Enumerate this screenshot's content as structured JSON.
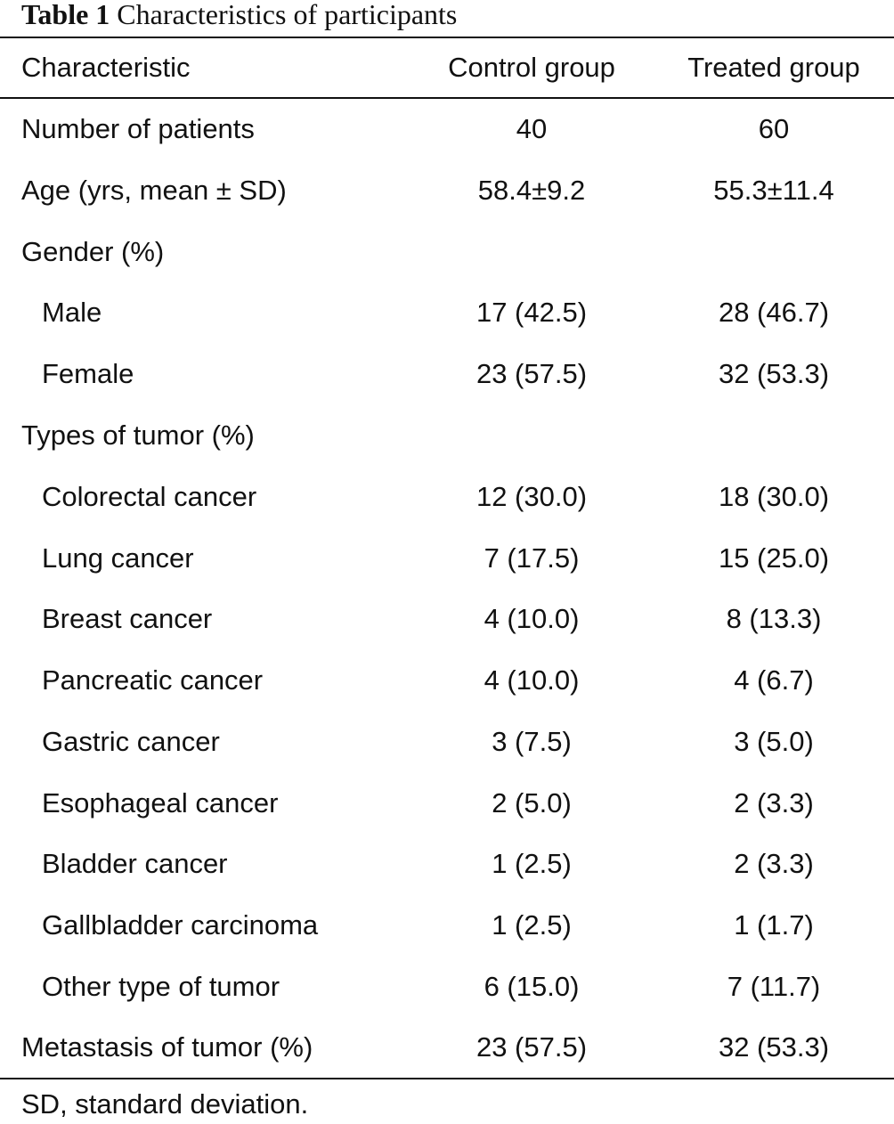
{
  "caption": {
    "label": "Table 1",
    "title": "Characteristics of participants"
  },
  "header": {
    "characteristic": "Characteristic",
    "control": "Control group",
    "treated": "Treated group"
  },
  "rows": [
    {
      "label": "Number of patients",
      "control": "40",
      "treated": "60"
    },
    {
      "label": "Age (yrs, mean ± SD)",
      "control": "58.4±9.2",
      "treated": "55.3±11.4"
    },
    {
      "label": "Gender (%)",
      "control": "",
      "treated": ""
    },
    {
      "label": "Male",
      "control": "17 (42.5)",
      "treated": "28 (46.7)"
    },
    {
      "label": "Female",
      "control": "23 (57.5)",
      "treated": "32 (53.3)"
    },
    {
      "label": "Types of tumor (%)",
      "control": "",
      "treated": ""
    },
    {
      "label": "Colorectal cancer",
      "control": "12 (30.0)",
      "treated": "18 (30.0)"
    },
    {
      "label": "Lung cancer",
      "control": "7 (17.5)",
      "treated": "15 (25.0)"
    },
    {
      "label": "Breast cancer",
      "control": "4 (10.0)",
      "treated": "8 (13.3)"
    },
    {
      "label": "Pancreatic cancer",
      "control": "4 (10.0)",
      "treated": "4 (6.7)"
    },
    {
      "label": "Gastric cancer",
      "control": "3 (7.5)",
      "treated": "3 (5.0)"
    },
    {
      "label": "Esophageal cancer",
      "control": "2 (5.0)",
      "treated": "2 (3.3)"
    },
    {
      "label": "Bladder cancer",
      "control": "1 (2.5)",
      "treated": "2 (3.3)"
    },
    {
      "label": "Gallbladder carcinoma",
      "control": "1 (2.5)",
      "treated": "1 (1.7)"
    },
    {
      "label": "Other type of tumor",
      "control": "6 (15.0)",
      "treated": "7 (11.7)"
    },
    {
      "label": "Metastasis of tumor (%)",
      "control": "23 (57.5)",
      "treated": "32 (53.3)"
    }
  ],
  "footnote": "SD, standard deviation."
}
